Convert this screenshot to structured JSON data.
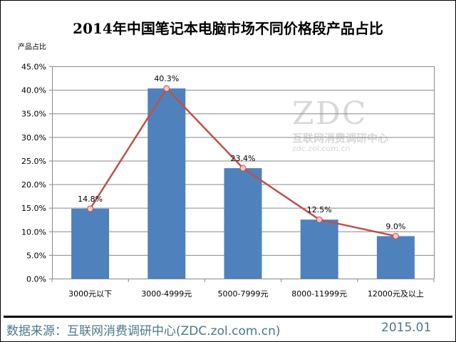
{
  "chart_data": {
    "type": "bar",
    "title": "2014年中国笔记本电脑市场不同价格段产品占比",
    "ylabel": "产品占比",
    "xlabel": "",
    "categories": [
      "3000元以下",
      "3000-4999元",
      "5000-7999元",
      "8000-11999元",
      "12000元及以上"
    ],
    "values": [
      14.8,
      40.3,
      23.4,
      12.5,
      9.0
    ],
    "data_labels": [
      "14.8%",
      "40.3%",
      "23.4%",
      "12.5%",
      "9.0%"
    ],
    "line_overlay": true,
    "ylim": [
      0,
      45
    ],
    "yticks": [
      "0.0%",
      "5.0%",
      "10.0%",
      "15.0%",
      "20.0%",
      "25.0%",
      "30.0%",
      "35.0%",
      "40.0%",
      "45.0%"
    ],
    "grid": true,
    "bar_color": "#4f81bd",
    "line_color": "#c0504d"
  },
  "watermark": {
    "logo": "ZDC",
    "name": "互联网消费调研中心",
    "url": "zdc.zol.com.cn"
  },
  "footer": {
    "source": "数据来源：互联网消费调研中心(ZDC.zol.com.cn)",
    "date": "2015.01"
  }
}
